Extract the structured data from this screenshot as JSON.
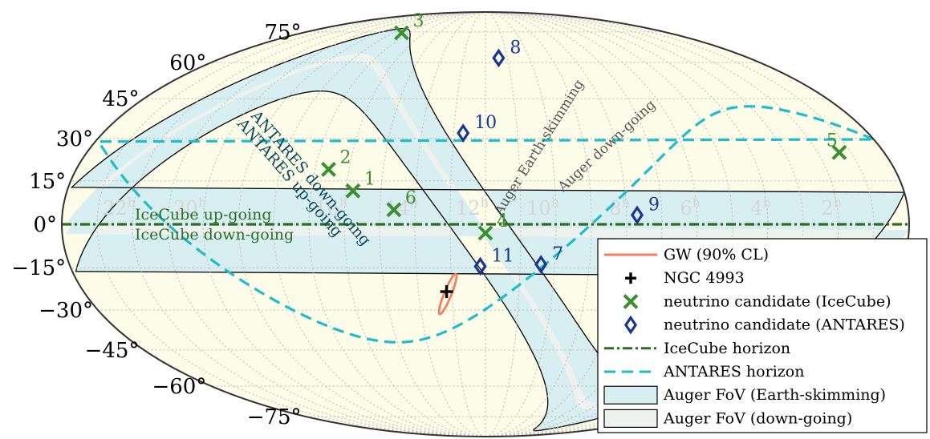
{
  "chart_data": {
    "type": "scatter",
    "projection": "mollweide",
    "grid": true,
    "legend_position": "bottom-right",
    "dec_ticks": [
      "75°",
      "60°",
      "45°",
      "30°",
      "15°",
      "0°",
      "−15°",
      "−30°",
      "−45°",
      "−60°",
      "−75°"
    ],
    "ra_ticks": [
      {
        "h": 22,
        "label": "22"
      },
      {
        "h": 20,
        "label": "20"
      },
      {
        "h": 16,
        "label": "16"
      },
      {
        "h": 14,
        "label": "14"
      },
      {
        "h": 12,
        "label": "12"
      },
      {
        "h": 10,
        "label": "10"
      },
      {
        "h": 8,
        "label": "8"
      },
      {
        "h": 6,
        "label": "6"
      },
      {
        "h": 4,
        "label": "4"
      },
      {
        "h": 2,
        "label": "2"
      }
    ],
    "ra_unit": "h",
    "gw": {
      "name": "GW (90% CL)",
      "ra_h": 13.15,
      "dec": -23.4
    },
    "ngc": {
      "name": "NGC 4993",
      "ra_h": 13.16,
      "dec": -23.4
    },
    "icecube": [
      {
        "label": "1",
        "ra_h": 15.8,
        "dec": 11.5
      },
      {
        "label": "2",
        "ra_h": 16.6,
        "dec": 19.0
      },
      {
        "label": "3",
        "ra_h": 17.5,
        "dec": 74.5
      },
      {
        "label": "4",
        "ra_h": 12.0,
        "dec": -3.0
      },
      {
        "label": "5",
        "ra_h": 1.35,
        "dec": 25.0
      },
      {
        "label": "6",
        "ra_h": 14.6,
        "dec": 5.0
      }
    ],
    "antares": [
      {
        "label": "7",
        "ra_h": 10.4,
        "dec": -13.8
      },
      {
        "label": "8",
        "ra_h": 11.4,
        "dec": 62.0
      },
      {
        "label": "9",
        "ra_h": 7.7,
        "dec": 3.2
      },
      {
        "label": "10",
        "ra_h": 12.7,
        "dec": 32.0
      },
      {
        "label": "11",
        "ra_h": 12.15,
        "dec": -14.5
      }
    ],
    "horizon_labels": {
      "icecube_up": "IceCube up-going",
      "icecube_down": "IceCube down-going",
      "antares_down": "ANTARES down-going",
      "antares_up": "ANTARES up-going",
      "auger_es": "Auger Earth-skimming",
      "auger_dg": "Auger down-going"
    },
    "legend": [
      {
        "key": "gw",
        "label": "GW (90% CL)"
      },
      {
        "key": "ngc",
        "label": "NGC 4993"
      },
      {
        "key": "icecube_pt",
        "label": "neutrino candidate (IceCube)"
      },
      {
        "key": "antares_pt",
        "label": "neutrino candidate (ANTARES)"
      },
      {
        "key": "icecube_hz",
        "label": "IceCube horizon"
      },
      {
        "key": "antares_hz",
        "label": "ANTARES horizon"
      },
      {
        "key": "auger_es",
        "label": "Auger FoV (Earth-skimming)"
      },
      {
        "key": "auger_dg",
        "label": "Auger FoV (down-going)"
      }
    ],
    "colors": {
      "sky_bg": "#fdfce8",
      "gw": "#f08060",
      "ngc": "#000000",
      "icecube": "#3a8f2e",
      "antares": "#1a3590",
      "icecube_hz": "#2e6b24",
      "antares_hz": "#20bccc",
      "auger_es": "#d8eff2",
      "auger_dg": "#eef2ee"
    }
  }
}
